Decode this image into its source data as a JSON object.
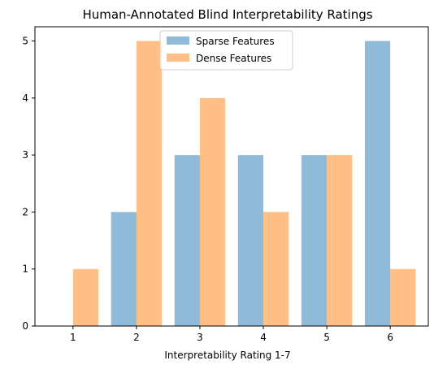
{
  "chart_data": {
    "type": "bar",
    "title": "Human-Annotated Blind Interpretability Ratings",
    "xlabel": "Interpretability Rating 1-7",
    "ylabel": "",
    "categories": [
      "1",
      "2",
      "3",
      "4",
      "5",
      "6"
    ],
    "x": [
      1,
      2,
      3,
      4,
      5,
      6
    ],
    "xlim": [
      0.4,
      6.6
    ],
    "ylim": [
      0,
      5.25
    ],
    "yticks": [
      0,
      1,
      2,
      3,
      4,
      5
    ],
    "grid": false,
    "legend_position": "top-center",
    "series": [
      {
        "name": "Sparse Features",
        "values": [
          0,
          2,
          3,
          3,
          3,
          5
        ],
        "color": "#1f77b4",
        "alpha": 0.5
      },
      {
        "name": "Dense Features",
        "values": [
          1,
          5,
          4,
          2,
          3,
          1
        ],
        "color": "#ff7f0e",
        "alpha": 0.5
      }
    ]
  }
}
